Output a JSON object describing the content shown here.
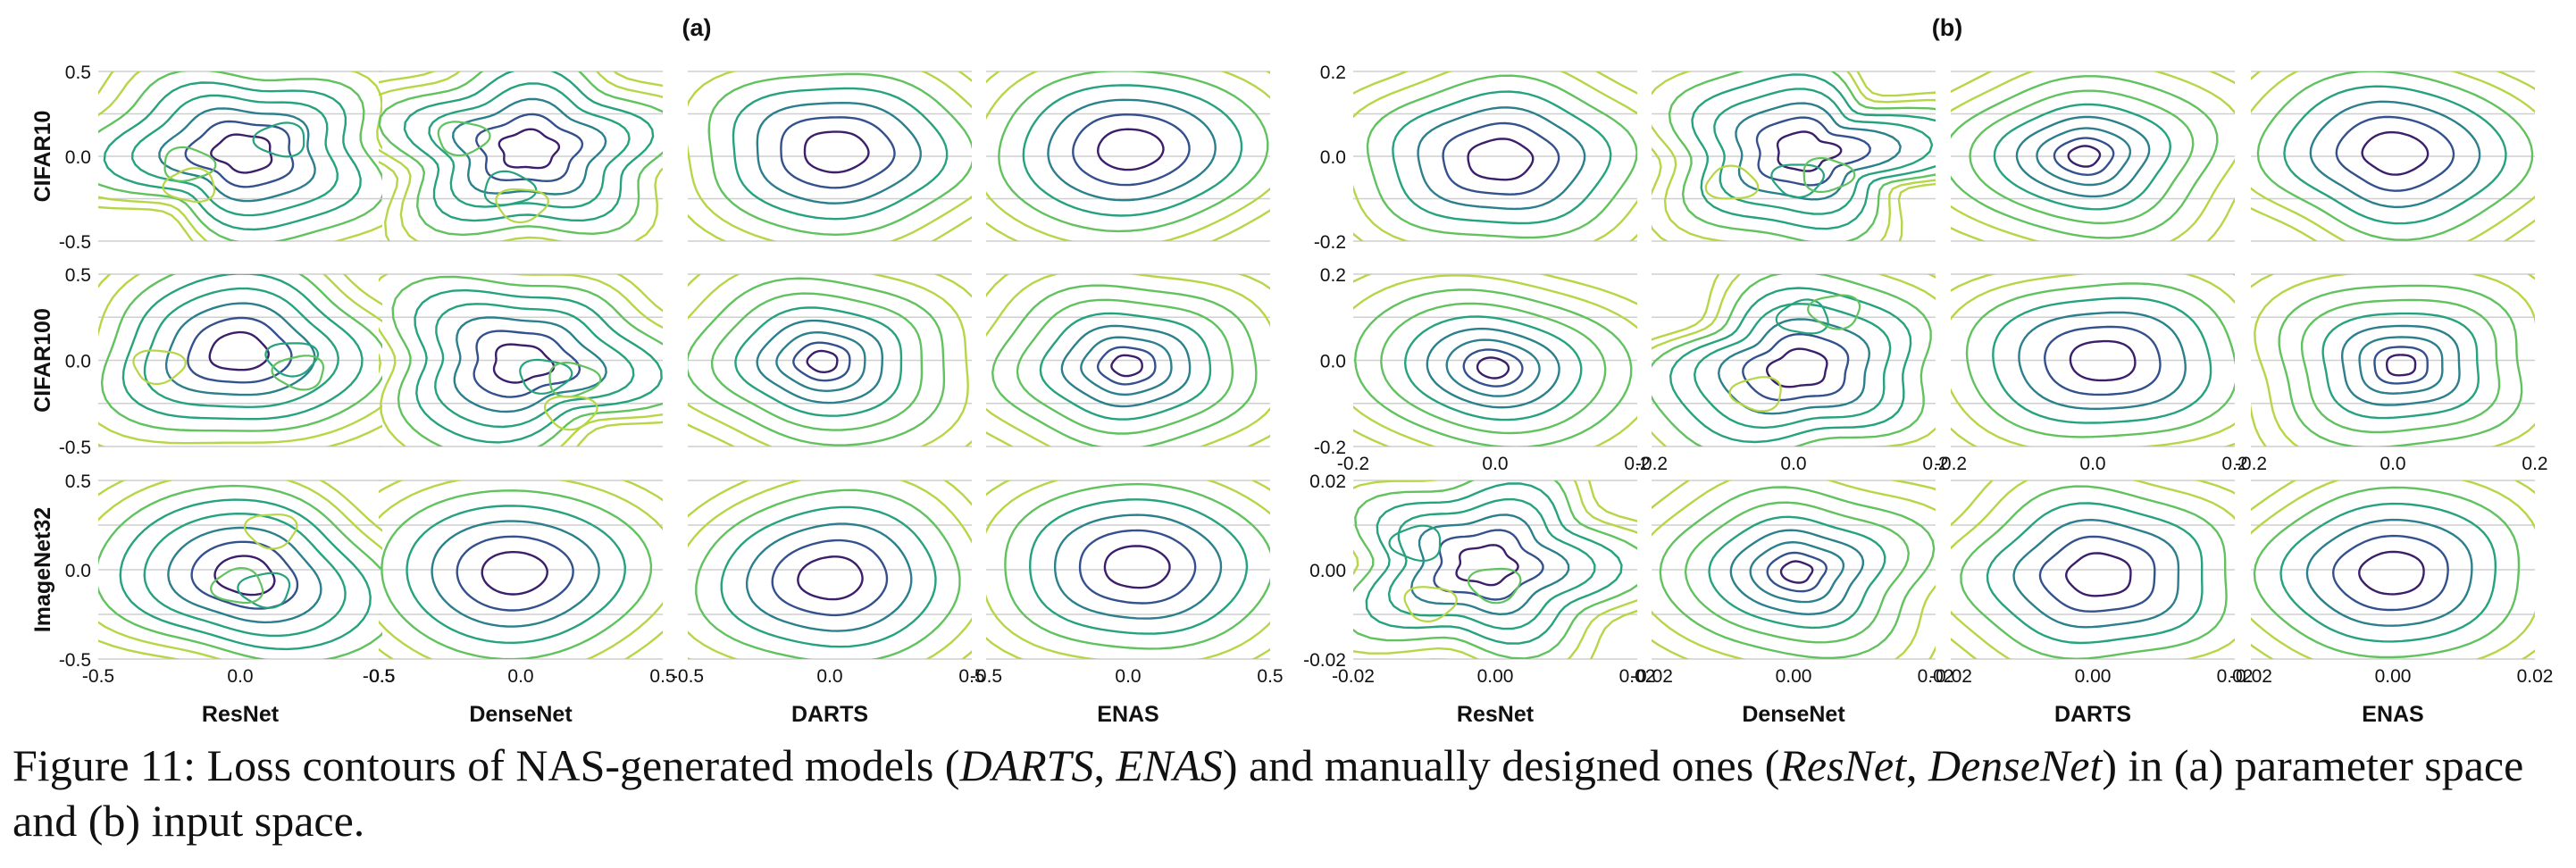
{
  "figure": {
    "panel_labels": [
      "(a)",
      "(b)"
    ],
    "row_labels": [
      "CIFAR10",
      "CIFAR100",
      "ImageNet32"
    ],
    "column_labels": [
      "ResNet",
      "DenseNet",
      "DARTS",
      "ENAS"
    ],
    "colormap": [
      "#3b1f6b",
      "#34518e",
      "#2c7f8d",
      "#27a27e",
      "#62c25f",
      "#b6d647"
    ]
  },
  "chart_data": [
    {
      "type": "contour",
      "panel": "(a)",
      "space": "parameter",
      "rows": [
        "CIFAR10",
        "CIFAR100",
        "ImageNet32"
      ],
      "columns": [
        "ResNet",
        "DenseNet",
        "DARTS",
        "ENAS"
      ],
      "xlim": [
        -0.5,
        0.5
      ],
      "ylim": [
        -0.5,
        0.5
      ],
      "xticks": [
        "-0.5",
        "0.0",
        "0.5"
      ],
      "yticks": [
        "0.5",
        "0.0",
        "-0.5"
      ],
      "grid": "horizontal"
    },
    {
      "type": "contour",
      "panel": "(b)",
      "space": "input",
      "rows": [
        "CIFAR10",
        "CIFAR100",
        "ImageNet32"
      ],
      "columns": [
        "ResNet",
        "DenseNet",
        "DARTS",
        "ENAS"
      ],
      "axes_by_row": [
        {
          "row": "CIFAR10",
          "xlim": [
            -0.2,
            0.2
          ],
          "ylim": [
            -0.2,
            0.2
          ],
          "xticks": [],
          "yticks": [
            "0.2",
            "0.0",
            "-0.2"
          ]
        },
        {
          "row": "CIFAR100",
          "xlim": [
            -0.2,
            0.2
          ],
          "ylim": [
            -0.2,
            0.2
          ],
          "xticks": [
            "-0.2",
            "0.0",
            "0.2"
          ],
          "yticks": [
            "0.2",
            "0.0",
            "-0.2"
          ]
        },
        {
          "row": "ImageNet32",
          "xlim": [
            -0.02,
            0.02
          ],
          "ylim": [
            -0.02,
            0.02
          ],
          "xticks": [
            "-0.02",
            "0.00",
            "0.02"
          ],
          "yticks": [
            "0.02",
            "0.00",
            "-0.02"
          ]
        }
      ],
      "grid": "horizontal"
    }
  ],
  "caption": {
    "label": "Figure 11:",
    "t1": " Loss contours of NAS-generated models (",
    "m1": "DARTS",
    "t2": ", ",
    "m2": "ENAS",
    "t3": ") and manually designed ones (",
    "m3": "ResNet",
    "t4": ", ",
    "m4": "DenseNet",
    "t5": ") in (a) parameter space and (b) input space."
  }
}
